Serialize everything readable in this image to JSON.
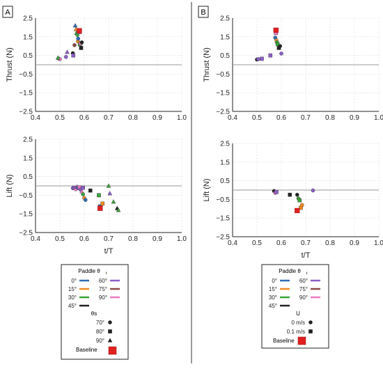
{
  "panels": [
    {
      "letter": "A"
    },
    {
      "letter": "B"
    }
  ],
  "colors": {
    "0": "#2f6db5",
    "15": "#f08a24",
    "30": "#3aa23a",
    "45": "#222222",
    "60": "#8c5fc8",
    "75": "#8b4a45",
    "90": "#e879c0",
    "baseline": "#e02020"
  },
  "legends": [
    {
      "title": "Paddle θ",
      "title_sub": "t",
      "paddle": [
        {
          "label": "0°",
          "key": "0"
        },
        {
          "label": "60°",
          "key": "60"
        },
        {
          "label": "15°",
          "key": "15"
        },
        {
          "label": "75°",
          "key": "75"
        },
        {
          "label": "30°",
          "key": "30"
        },
        {
          "label": "90°",
          "key": "90"
        },
        {
          "label": "45°",
          "key": "45"
        }
      ],
      "marker_title": "θs",
      "markers": [
        {
          "label": "70°",
          "shape": "circle"
        },
        {
          "label": "80°",
          "shape": "square"
        },
        {
          "label": "90°",
          "shape": "triangle"
        }
      ],
      "baseline_label": "Baseline"
    },
    {
      "title": "Paddle θ",
      "title_sub": "t",
      "paddle": [
        {
          "label": "0°",
          "key": "0"
        },
        {
          "label": "60°",
          "key": "60"
        },
        {
          "label": "15°",
          "key": "15"
        },
        {
          "label": "75°",
          "key": "75"
        },
        {
          "label": "30°",
          "key": "30"
        },
        {
          "label": "90°",
          "key": "90"
        },
        {
          "label": "45°",
          "key": "45"
        }
      ],
      "marker_title": "U",
      "markers": [
        {
          "label": "0 m/s",
          "shape": "circle"
        },
        {
          "label": "0.1 m/s",
          "shape": "square"
        }
      ],
      "baseline_label": "Baseline"
    }
  ],
  "chart_data": [
    {
      "id": "A-thrust",
      "type": "scatter",
      "xlabel": "",
      "ylabel": "Thrust (N)",
      "xlim": [
        0.4,
        1.0
      ],
      "ylim": [
        -2.5,
        2.5
      ],
      "xticks": [
        0.4,
        0.5,
        0.6,
        0.7,
        0.8,
        0.9,
        1.0
      ],
      "yticks": [
        -2.5,
        -1.5,
        -0.5,
        0.5,
        1.5,
        2.5
      ],
      "tick_labels_x": [
        "0.4",
        "0.5",
        "0.6",
        "0.7",
        "0.8",
        "0.9",
        "1.0"
      ],
      "tick_labels_y": [
        "−2.5",
        "−1.5",
        "−0.5",
        "0.5",
        "1.5",
        "2.5"
      ],
      "reference_line_y": 0,
      "points": [
        {
          "x": 0.495,
          "y": 0.33,
          "c": "60",
          "m": "circle"
        },
        {
          "x": 0.5,
          "y": 0.3,
          "c": "90",
          "m": "circle"
        },
        {
          "x": 0.492,
          "y": 0.37,
          "c": "30",
          "m": "triangle"
        },
        {
          "x": 0.525,
          "y": 0.42,
          "c": "60",
          "m": "circle"
        },
        {
          "x": 0.53,
          "y": 0.68,
          "c": "60",
          "m": "triangle"
        },
        {
          "x": 0.553,
          "y": 0.62,
          "c": "45",
          "m": "circle"
        },
        {
          "x": 0.555,
          "y": 0.5,
          "c": "60",
          "m": "square"
        },
        {
          "x": 0.56,
          "y": 1.05,
          "c": "75",
          "m": "circle"
        },
        {
          "x": 0.563,
          "y": 2.1,
          "c": "0",
          "m": "triangle"
        },
        {
          "x": 0.566,
          "y": 1.9,
          "c": "15",
          "m": "triangle"
        },
        {
          "x": 0.568,
          "y": 1.7,
          "c": "30",
          "m": "triangle"
        },
        {
          "x": 0.572,
          "y": 1.6,
          "c": "30",
          "m": "circle"
        },
        {
          "x": 0.574,
          "y": 1.25,
          "c": "15",
          "m": "circle"
        },
        {
          "x": 0.575,
          "y": 1.4,
          "c": "0",
          "m": "circle"
        },
        {
          "x": 0.578,
          "y": 1.8,
          "c": "45",
          "m": "triangle"
        },
        {
          "x": 0.58,
          "y": 1.75,
          "c": "90",
          "m": "square"
        },
        {
          "x": 0.582,
          "y": 1.1,
          "c": "30",
          "m": "square"
        },
        {
          "x": 0.585,
          "y": 1.15,
          "c": "90",
          "m": "square"
        },
        {
          "x": 0.587,
          "y": 0.9,
          "c": "45",
          "m": "square"
        },
        {
          "x": 0.59,
          "y": 1.2,
          "c": "45",
          "m": "circle"
        }
      ],
      "baseline": {
        "x": 0.58,
        "y": 1.82
      }
    },
    {
      "id": "A-lift",
      "type": "scatter",
      "xlabel": "t/T",
      "ylabel": "Lift (N)",
      "xlim": [
        0.4,
        1.0
      ],
      "ylim": [
        -2.5,
        2.5
      ],
      "xticks": [
        0.4,
        0.5,
        0.6,
        0.7,
        0.8,
        0.9,
        1.0
      ],
      "yticks": [
        -2.5,
        -1.5,
        -0.5,
        0.5,
        1.5,
        2.5
      ],
      "tick_labels_x": [
        "0.4",
        "0.5",
        "0.6",
        "0.7",
        "0.8",
        "0.9",
        "1.0"
      ],
      "tick_labels_y": [
        "−2.5",
        "−1.5",
        "−0.5",
        "0.5",
        "1.5",
        "2.5"
      ],
      "reference_line_y": 0,
      "points": [
        {
          "x": 0.553,
          "y": -0.12,
          "c": "60",
          "m": "circle"
        },
        {
          "x": 0.56,
          "y": -0.1,
          "c": "60",
          "m": "square"
        },
        {
          "x": 0.565,
          "y": -0.18,
          "c": "90",
          "m": "circle"
        },
        {
          "x": 0.57,
          "y": -0.05,
          "c": "60",
          "m": "triangle"
        },
        {
          "x": 0.575,
          "y": -0.12,
          "c": "0",
          "m": "circle"
        },
        {
          "x": 0.58,
          "y": -0.08,
          "c": "90",
          "m": "square"
        },
        {
          "x": 0.585,
          "y": -0.2,
          "c": "60",
          "m": "circle"
        },
        {
          "x": 0.59,
          "y": -0.3,
          "c": "90",
          "m": "triangle"
        },
        {
          "x": 0.595,
          "y": -0.45,
          "c": "30",
          "m": "circle"
        },
        {
          "x": 0.6,
          "y": -0.65,
          "c": "15",
          "m": "circle"
        },
        {
          "x": 0.605,
          "y": -0.75,
          "c": "0",
          "m": "circle"
        },
        {
          "x": 0.595,
          "y": -0.1,
          "c": "60",
          "m": "square"
        },
        {
          "x": 0.625,
          "y": -0.25,
          "c": "45",
          "m": "square"
        },
        {
          "x": 0.66,
          "y": -0.5,
          "c": "30",
          "m": "square"
        },
        {
          "x": 0.665,
          "y": -1.1,
          "c": "0",
          "m": "square"
        },
        {
          "x": 0.675,
          "y": -0.95,
          "c": "15",
          "m": "square"
        },
        {
          "x": 0.7,
          "y": 0.0,
          "c": "30",
          "m": "triangle"
        },
        {
          "x": 0.705,
          "y": -0.4,
          "c": "60",
          "m": "triangle"
        },
        {
          "x": 0.72,
          "y": -0.85,
          "c": "30",
          "m": "triangle"
        },
        {
          "x": 0.735,
          "y": -1.2,
          "c": "45",
          "m": "triangle"
        },
        {
          "x": 0.74,
          "y": -1.3,
          "c": "30",
          "m": "triangle"
        }
      ],
      "baseline": {
        "x": 0.665,
        "y": -1.2
      }
    },
    {
      "id": "B-thrust",
      "type": "scatter",
      "xlabel": "",
      "ylabel": "Thrust (N)",
      "xlim": [
        0.4,
        1.0
      ],
      "ylim": [
        -2.5,
        2.5
      ],
      "xticks": [
        0.4,
        0.5,
        0.6,
        0.7,
        0.8,
        0.9,
        1.0
      ],
      "yticks": [
        -2.5,
        -1.5,
        -0.5,
        0.5,
        1.5,
        2.5
      ],
      "tick_labels_x": [
        "0.4",
        "0.5",
        "0.6",
        "0.7",
        "0.8",
        "0.9",
        "1.0"
      ],
      "tick_labels_y": [
        "−2.5",
        "−1.5",
        "−0.5",
        "0.5",
        "1.5",
        "2.5"
      ],
      "reference_line_y": 0,
      "points": [
        {
          "x": 0.5,
          "y": 0.28,
          "c": "45",
          "m": "circle"
        },
        {
          "x": 0.505,
          "y": 0.3,
          "c": "60",
          "m": "circle"
        },
        {
          "x": 0.52,
          "y": 0.32,
          "c": "60",
          "m": "square"
        },
        {
          "x": 0.555,
          "y": 0.5,
          "c": "60",
          "m": "square"
        },
        {
          "x": 0.575,
          "y": 1.45,
          "c": "0",
          "m": "circle"
        },
        {
          "x": 0.58,
          "y": 1.3,
          "c": "15",
          "m": "circle"
        },
        {
          "x": 0.582,
          "y": 1.2,
          "c": "30",
          "m": "circle"
        },
        {
          "x": 0.585,
          "y": 1.1,
          "c": "30",
          "m": "square"
        },
        {
          "x": 0.578,
          "y": 1.7,
          "c": "90",
          "m": "square"
        },
        {
          "x": 0.59,
          "y": 0.9,
          "c": "45",
          "m": "square"
        },
        {
          "x": 0.595,
          "y": 1.0,
          "c": "45",
          "m": "circle"
        },
        {
          "x": 0.6,
          "y": 0.6,
          "c": "60",
          "m": "circle"
        }
      ],
      "baseline": {
        "x": 0.578,
        "y": 1.85
      }
    },
    {
      "id": "B-lift",
      "type": "scatter",
      "xlabel": "t/T",
      "ylabel": "Lift (N)",
      "xlim": [
        0.4,
        1.0
      ],
      "ylim": [
        -2.5,
        2.5
      ],
      "xticks": [
        0.4,
        0.5,
        0.6,
        0.7,
        0.8,
        0.9,
        1.0
      ],
      "yticks": [
        -2.5,
        -1.5,
        -0.5,
        0.5,
        1.5,
        2.5
      ],
      "tick_labels_x": [
        "0.4",
        "0.5",
        "0.6",
        "0.7",
        "0.8",
        "0.9",
        "1.0"
      ],
      "tick_labels_y": [
        "−2.5",
        "−1.5",
        "−0.5",
        "0.5",
        "1.5",
        "2.5"
      ],
      "reference_line_y": 0,
      "points": [
        {
          "x": 0.57,
          "y": -0.05,
          "c": "45",
          "m": "circle"
        },
        {
          "x": 0.575,
          "y": -0.15,
          "c": "90",
          "m": "circle"
        },
        {
          "x": 0.58,
          "y": -0.1,
          "c": "60",
          "m": "square"
        },
        {
          "x": 0.635,
          "y": -0.25,
          "c": "45",
          "m": "square"
        },
        {
          "x": 0.665,
          "y": -0.25,
          "c": "45",
          "m": "circle"
        },
        {
          "x": 0.67,
          "y": -0.45,
          "c": "30",
          "m": "circle"
        },
        {
          "x": 0.675,
          "y": -0.55,
          "c": "30",
          "m": "square"
        },
        {
          "x": 0.68,
          "y": -0.95,
          "c": "15",
          "m": "square"
        },
        {
          "x": 0.685,
          "y": -0.8,
          "c": "15",
          "m": "circle"
        },
        {
          "x": 0.73,
          "y": -0.02,
          "c": "60",
          "m": "circle"
        }
      ],
      "baseline": {
        "x": 0.665,
        "y": -1.1
      }
    }
  ]
}
